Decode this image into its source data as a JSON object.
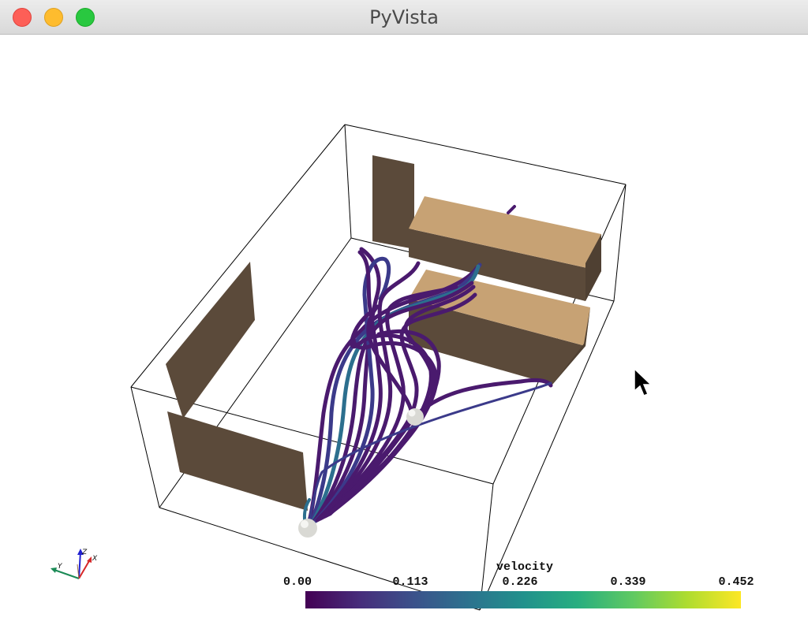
{
  "window": {
    "title": "PyVista",
    "controls": {
      "close": "close-button",
      "minimize": "minimize-button",
      "zoom": "zoom-button"
    }
  },
  "scene": {
    "seed_icons": [
      "sphere-icon",
      "sphere-icon"
    ],
    "cursor_icon": "arrow-cursor-icon"
  },
  "orientation_axes": {
    "x_label": "X",
    "y_label": "Y",
    "z_label": "Z",
    "colors": {
      "x": "#d62728",
      "y": "#1a8a55",
      "z": "#2020d0"
    }
  },
  "scalar_bar": {
    "title": "velocity",
    "ticks": [
      "0.00",
      "0.113",
      "0.226",
      "0.339",
      "0.452"
    ],
    "colormap": "viridis",
    "colors": [
      "#440154",
      "#472d7b",
      "#3b528b",
      "#2c728e",
      "#21918c",
      "#28ae80",
      "#5ec962",
      "#addc30",
      "#fde725"
    ]
  },
  "colors": {
    "walls": "#5b4a3a",
    "block_top": "#c7a274",
    "streamline": "#4a1a6e",
    "streamline_fast": "#2c6f8e",
    "box_edge": "#000000"
  }
}
